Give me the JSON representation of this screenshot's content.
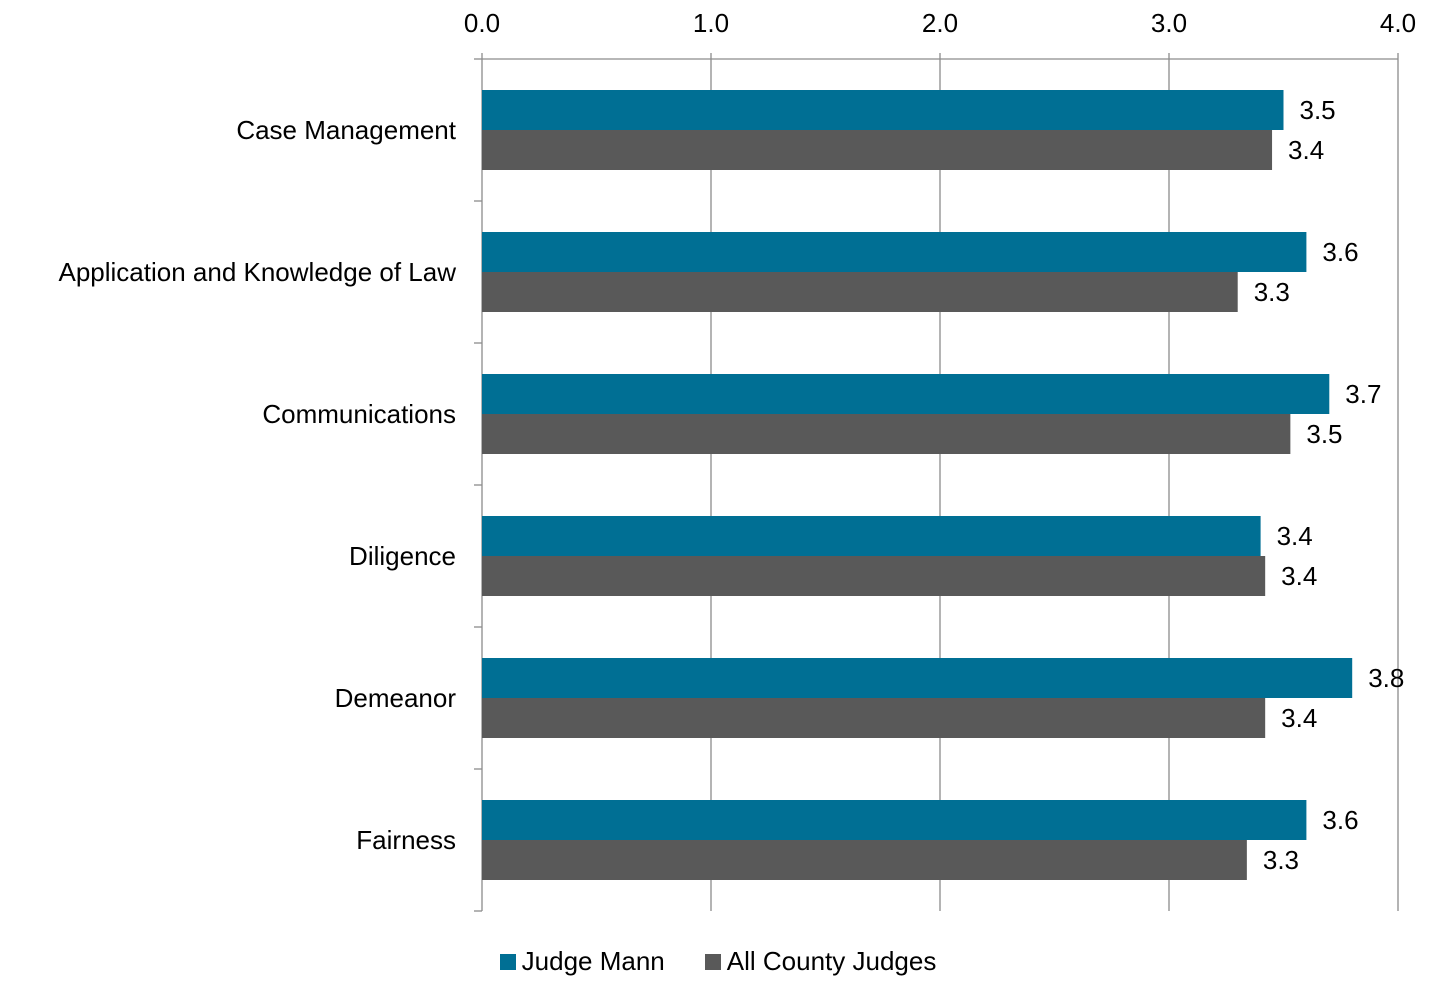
{
  "chart_data": {
    "type": "bar",
    "orientation": "horizontal",
    "categories": [
      "Case Management",
      "Application and Knowledge of Law",
      "Communications",
      "Diligence",
      "Demeanor",
      "Fairness"
    ],
    "series": [
      {
        "name": "Judge Mann",
        "color": "#006f94",
        "values": [
          3.5,
          3.6,
          3.7,
          3.4,
          3.8,
          3.6
        ],
        "labels": [
          "3.5",
          "3.6",
          "3.7",
          "3.4",
          "3.8",
          "3.6"
        ]
      },
      {
        "name": "All County Judges",
        "color": "#595959",
        "values": [
          3.45,
          3.3,
          3.53,
          3.42,
          3.42,
          3.34
        ],
        "labels": [
          "3.4",
          "3.3",
          "3.5",
          "3.4",
          "3.4",
          "3.3"
        ]
      }
    ],
    "xlim": [
      0,
      4
    ],
    "ticks": [
      "0.0",
      "1.0",
      "2.0",
      "3.0",
      "4.0"
    ],
    "grid": true,
    "axis_position": "top",
    "legend_position": "bottom"
  }
}
